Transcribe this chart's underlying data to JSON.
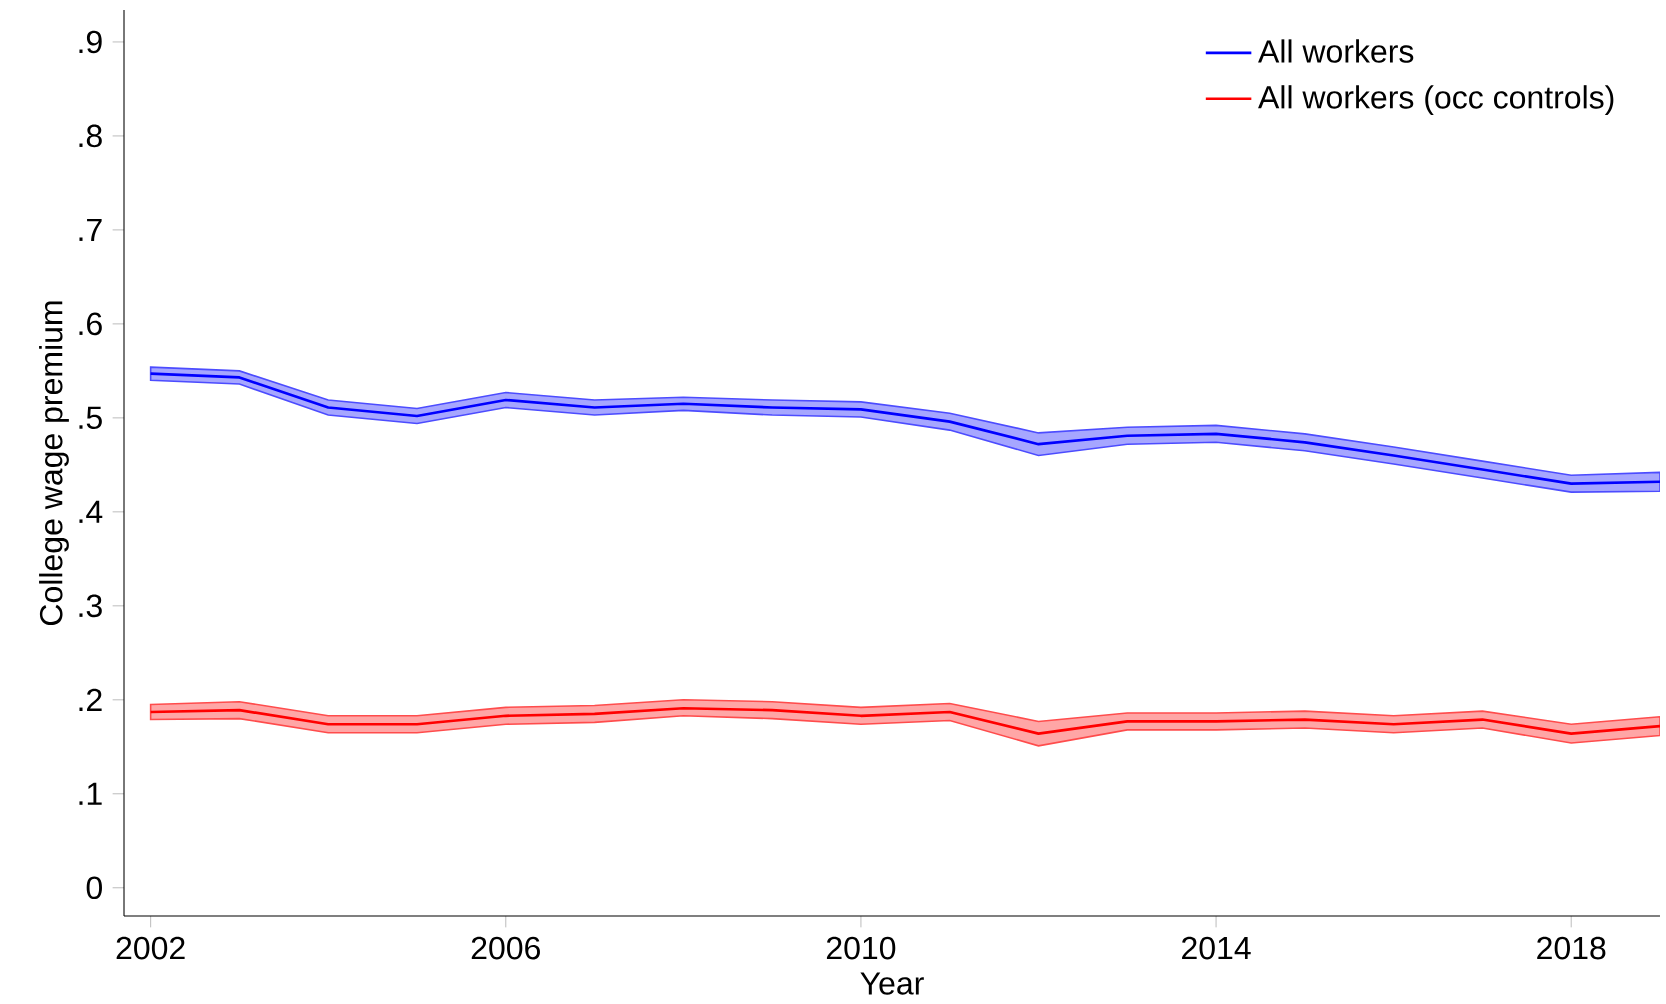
{
  "chart_data": {
    "type": "line",
    "xlabel": "Year",
    "ylabel": "College wage premium",
    "x": [
      2002,
      2003,
      2004,
      2005,
      2006,
      2007,
      2008,
      2009,
      2010,
      2011,
      2012,
      2013,
      2014,
      2015,
      2016,
      2017,
      2018,
      2019
    ],
    "series": [
      {
        "name": "All workers",
        "color": "#0000ff",
        "values": [
          0.547,
          0.543,
          0.511,
          0.502,
          0.519,
          0.511,
          0.515,
          0.511,
          0.509,
          0.496,
          0.472,
          0.481,
          0.483,
          0.474,
          0.46,
          0.445,
          0.43,
          0.432
        ],
        "lower": [
          0.54,
          0.536,
          0.503,
          0.494,
          0.511,
          0.503,
          0.508,
          0.503,
          0.501,
          0.487,
          0.46,
          0.472,
          0.474,
          0.465,
          0.451,
          0.436,
          0.421,
          0.422
        ],
        "upper": [
          0.554,
          0.55,
          0.519,
          0.51,
          0.527,
          0.519,
          0.522,
          0.519,
          0.517,
          0.505,
          0.484,
          0.49,
          0.492,
          0.483,
          0.469,
          0.454,
          0.439,
          0.442
        ]
      },
      {
        "name": "All workers (occ controls)",
        "color": "#ff0000",
        "values": [
          0.187,
          0.189,
          0.174,
          0.174,
          0.183,
          0.185,
          0.191,
          0.189,
          0.183,
          0.187,
          0.164,
          0.177,
          0.177,
          0.179,
          0.174,
          0.179,
          0.164,
          0.172
        ],
        "lower": [
          0.179,
          0.18,
          0.165,
          0.165,
          0.174,
          0.176,
          0.183,
          0.18,
          0.174,
          0.178,
          0.151,
          0.168,
          0.168,
          0.17,
          0.165,
          0.17,
          0.154,
          0.162
        ],
        "upper": [
          0.195,
          0.198,
          0.183,
          0.183,
          0.192,
          0.194,
          0.2,
          0.198,
          0.192,
          0.196,
          0.177,
          0.186,
          0.186,
          0.188,
          0.183,
          0.188,
          0.174,
          0.182
        ]
      }
    ],
    "xlim": [
      2001.7,
      2019
    ],
    "ylim": [
      -0.03,
      0.934
    ],
    "xticks": [
      2002,
      2006,
      2010,
      2014,
      2018
    ],
    "yticks": [
      0,
      {
        "value": 0.1,
        "label": ".1"
      },
      {
        "value": 0.2,
        "label": ".2"
      },
      {
        "value": 0.3,
        "label": ".3"
      },
      {
        "value": 0.4,
        "label": ".4"
      },
      {
        "value": 0.5,
        "label": ".5"
      },
      {
        "value": 0.6,
        "label": ".6"
      },
      {
        "value": 0.7,
        "label": ".7"
      },
      {
        "value": 0.8,
        "label": ".8"
      },
      {
        "value": 0.9,
        "label": ".9"
      }
    ],
    "grid": false,
    "legend": "top right",
    "marker": "none",
    "line_style": "solid"
  }
}
